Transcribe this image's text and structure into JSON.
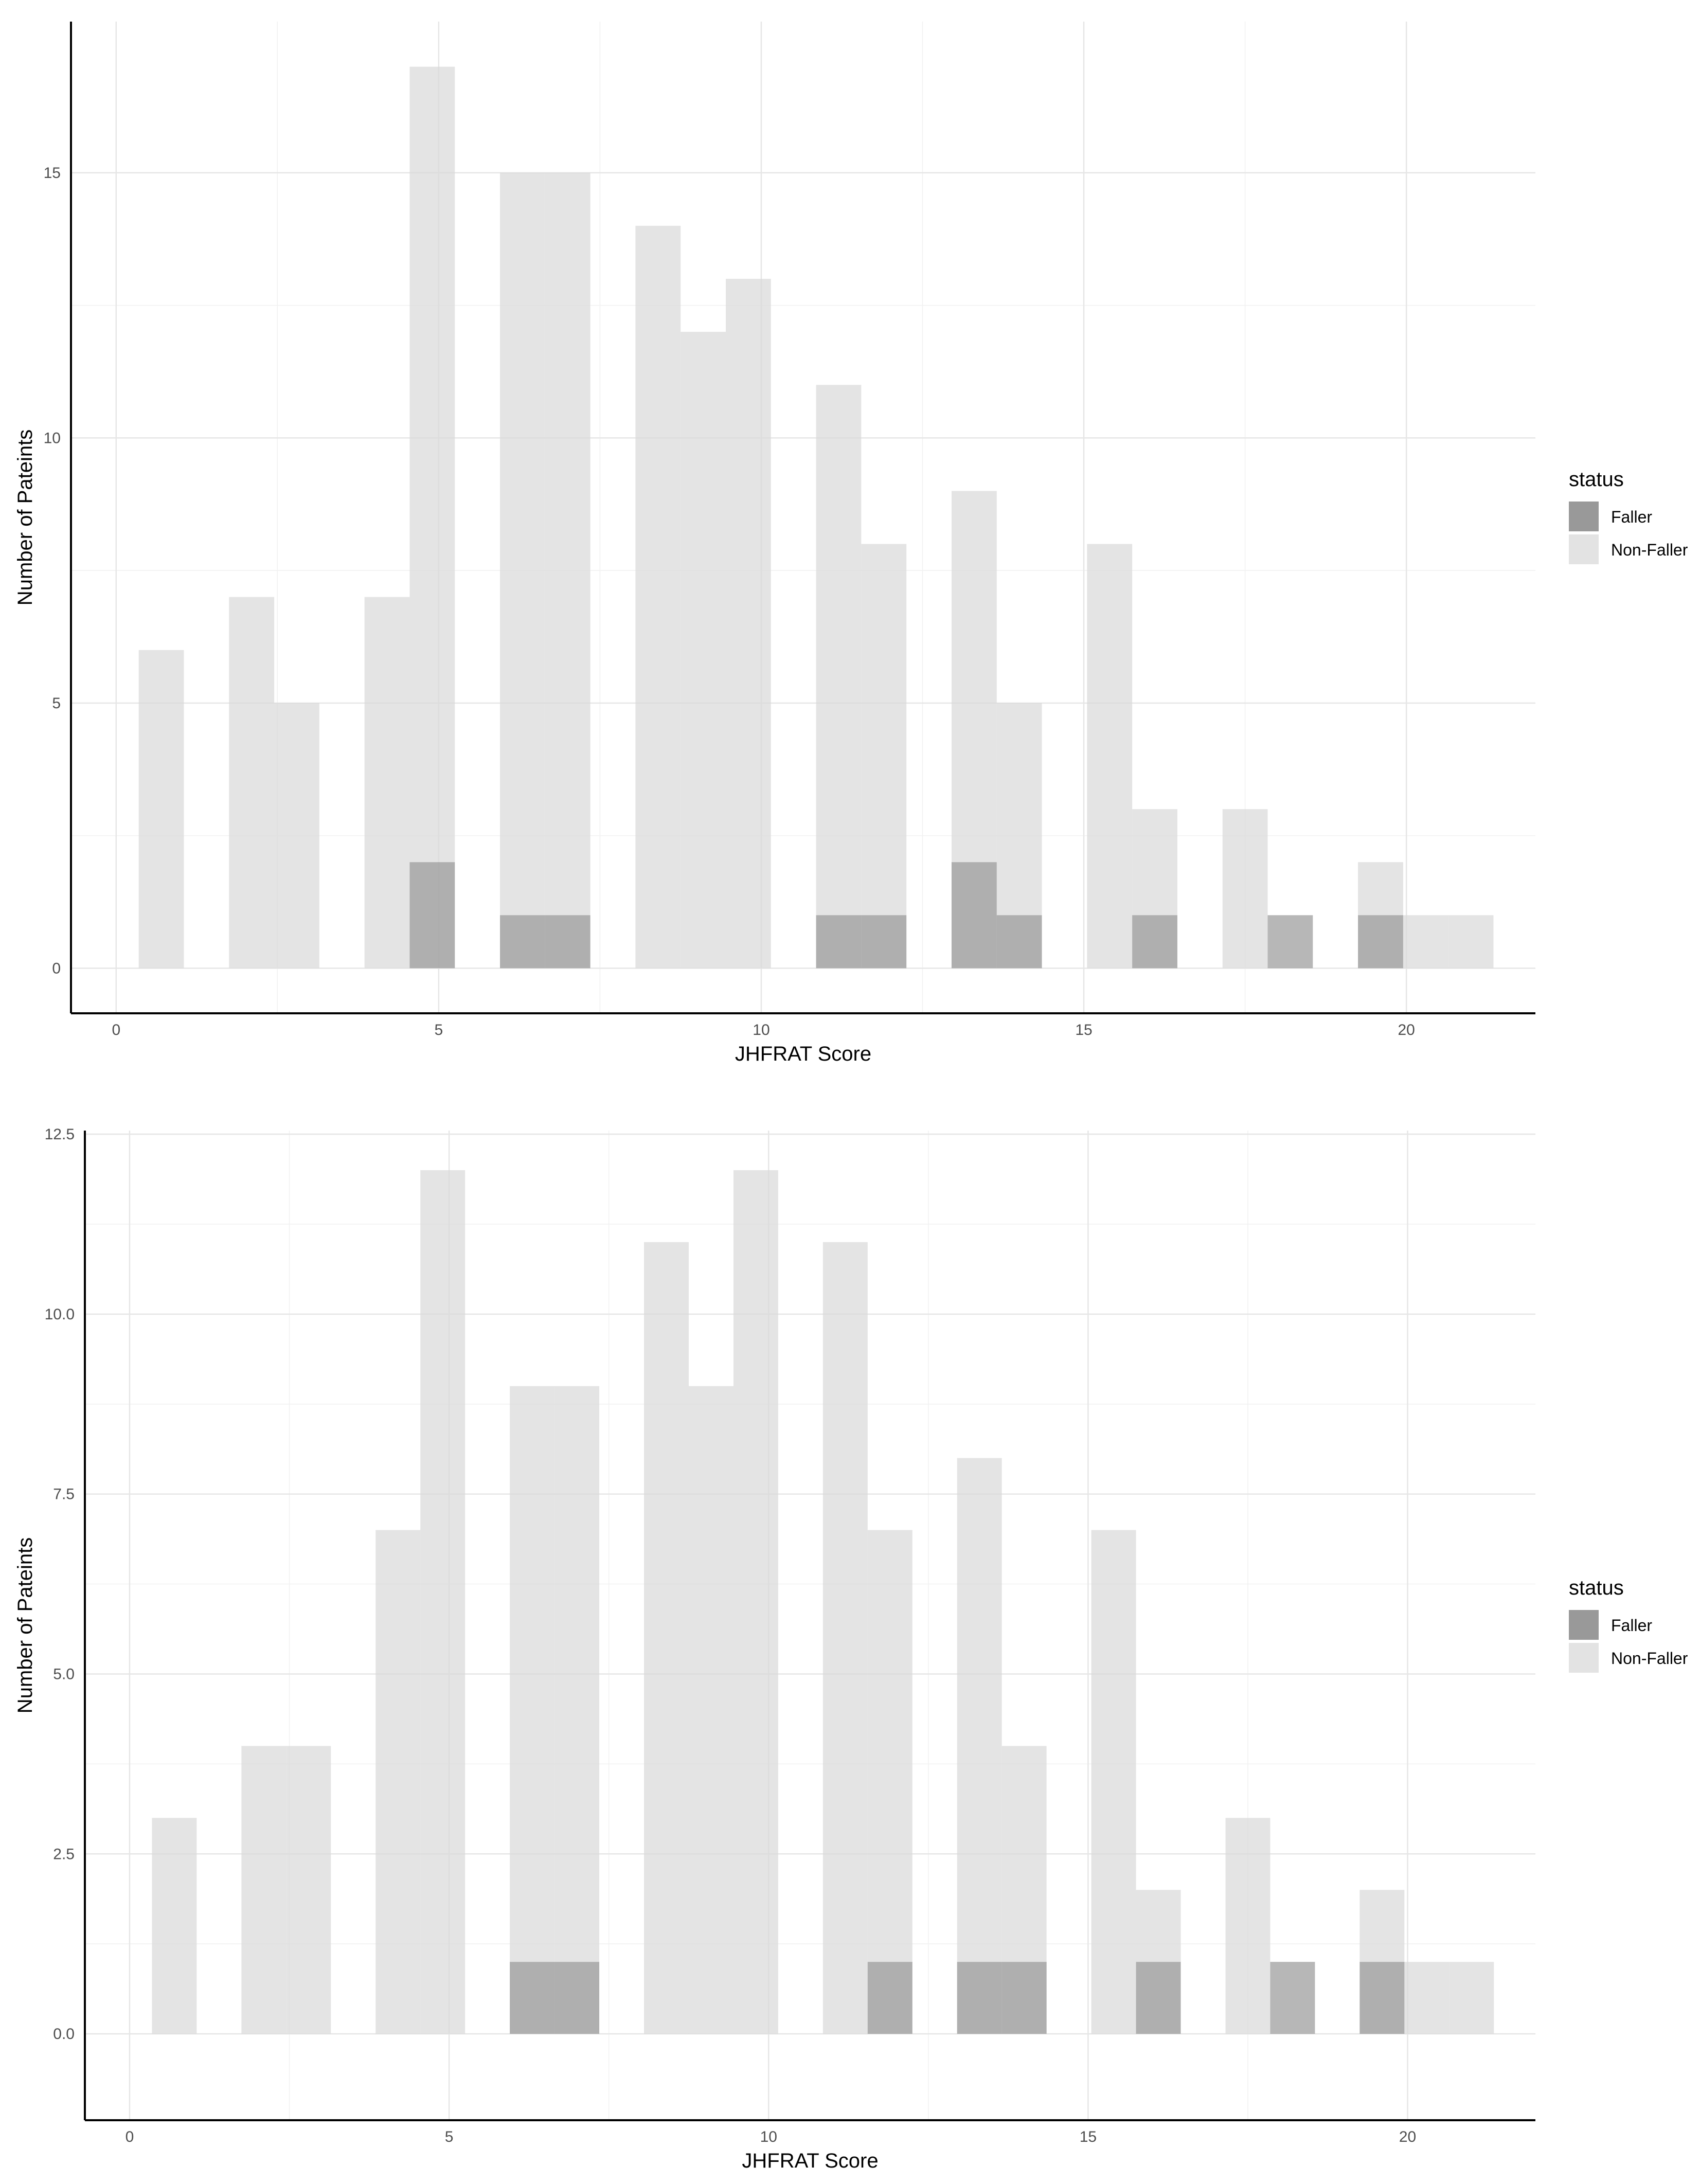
{
  "colors": {
    "faller": "#999999",
    "non_faller": "#d9d9d9",
    "axis": "#000000",
    "tick_text": "#4d4d4d"
  },
  "chart_data": [
    {
      "type": "bar",
      "stacking": "overlap",
      "bin_width": 0.7,
      "title": "",
      "xlabel": "JHFRAT Score",
      "ylabel": "Number of Pateints",
      "xlim": [
        -0.7,
        22.0
      ],
      "ylim": [
        -0.85,
        17.85
      ],
      "x_ticks": [
        0,
        5,
        10,
        15,
        20
      ],
      "x_tick_labels": [
        "0",
        "5",
        "10",
        "15",
        "20"
      ],
      "y_ticks": [
        0,
        5,
        10,
        15
      ],
      "y_tick_labels": [
        "0",
        "5",
        "10",
        "15"
      ],
      "grid": true,
      "legend": {
        "title": "status",
        "position": "right",
        "entries": [
          "Faller",
          "Non-Faller"
        ]
      },
      "series": [
        {
          "name": "Non-Faller",
          "bins": [
            {
              "x": 0.7,
              "count": 6
            },
            {
              "x": 2.1,
              "count": 7
            },
            {
              "x": 2.8,
              "count": 5
            },
            {
              "x": 4.2,
              "count": 7
            },
            {
              "x": 4.9,
              "count": 17
            },
            {
              "x": 6.3,
              "count": 15
            },
            {
              "x": 7.0,
              "count": 15
            },
            {
              "x": 8.4,
              "count": 14
            },
            {
              "x": 9.1,
              "count": 12
            },
            {
              "x": 9.8,
              "count": 13
            },
            {
              "x": 11.2,
              "count": 11
            },
            {
              "x": 11.9,
              "count": 8
            },
            {
              "x": 13.3,
              "count": 9
            },
            {
              "x": 14.0,
              "count": 5
            },
            {
              "x": 15.4,
              "count": 8
            },
            {
              "x": 16.1,
              "count": 3
            },
            {
              "x": 17.5,
              "count": 3
            },
            {
              "x": 19.6,
              "count": 2
            },
            {
              "x": 20.3,
              "count": 1
            },
            {
              "x": 21.0,
              "count": 1
            }
          ]
        },
        {
          "name": "Faller",
          "bins": [
            {
              "x": 4.9,
              "count": 2
            },
            {
              "x": 6.3,
              "count": 1
            },
            {
              "x": 7.0,
              "count": 1
            },
            {
              "x": 11.2,
              "count": 1
            },
            {
              "x": 11.9,
              "count": 1
            },
            {
              "x": 13.3,
              "count": 2
            },
            {
              "x": 14.0,
              "count": 1
            },
            {
              "x": 16.1,
              "count": 1
            },
            {
              "x": 18.2,
              "count": 1
            },
            {
              "x": 19.6,
              "count": 1
            }
          ]
        }
      ]
    },
    {
      "type": "bar",
      "stacking": "overlap",
      "bin_width": 0.7,
      "title": "",
      "xlabel": "JHFRAT Score",
      "ylabel": "Number of Pateints",
      "xlim": [
        -0.7,
        22.0
      ],
      "ylim": [
        -1.2,
        12.55
      ],
      "x_ticks": [
        0,
        5,
        10,
        15,
        20
      ],
      "x_tick_labels": [
        "0",
        "5",
        "10",
        "15",
        "20"
      ],
      "y_ticks": [
        0,
        2.5,
        5,
        7.5,
        10,
        12.5
      ],
      "y_tick_labels": [
        "0.0",
        "2.5",
        "5.0",
        "7.5",
        "10.0",
        "12.5"
      ],
      "grid": true,
      "legend": {
        "title": "status",
        "position": "right",
        "entries": [
          "Faller",
          "Non-Faller"
        ]
      },
      "series": [
        {
          "name": "Non-Faller",
          "bins": [
            {
              "x": 0.7,
              "count": 3
            },
            {
              "x": 2.1,
              "count": 4
            },
            {
              "x": 2.8,
              "count": 4
            },
            {
              "x": 4.2,
              "count": 7
            },
            {
              "x": 4.9,
              "count": 12
            },
            {
              "x": 6.3,
              "count": 9
            },
            {
              "x": 7.0,
              "count": 9
            },
            {
              "x": 8.4,
              "count": 11
            },
            {
              "x": 9.1,
              "count": 9
            },
            {
              "x": 9.8,
              "count": 12
            },
            {
              "x": 11.2,
              "count": 11
            },
            {
              "x": 11.9,
              "count": 7
            },
            {
              "x": 13.3,
              "count": 8
            },
            {
              "x": 14.0,
              "count": 4
            },
            {
              "x": 15.4,
              "count": 7
            },
            {
              "x": 16.1,
              "count": 2
            },
            {
              "x": 17.5,
              "count": 3
            },
            {
              "x": 19.6,
              "count": 2
            },
            {
              "x": 20.3,
              "count": 1
            },
            {
              "x": 21.0,
              "count": 1
            }
          ]
        },
        {
          "name": "Faller",
          "bins": [
            {
              "x": 6.3,
              "count": 1
            },
            {
              "x": 7.0,
              "count": 1
            },
            {
              "x": 11.9,
              "count": 1
            },
            {
              "x": 13.3,
              "count": 1
            },
            {
              "x": 14.0,
              "count": 1
            },
            {
              "x": 16.1,
              "count": 1
            },
            {
              "x": 18.2,
              "count": 1
            },
            {
              "x": 19.6,
              "count": 1
            }
          ]
        }
      ]
    }
  ]
}
